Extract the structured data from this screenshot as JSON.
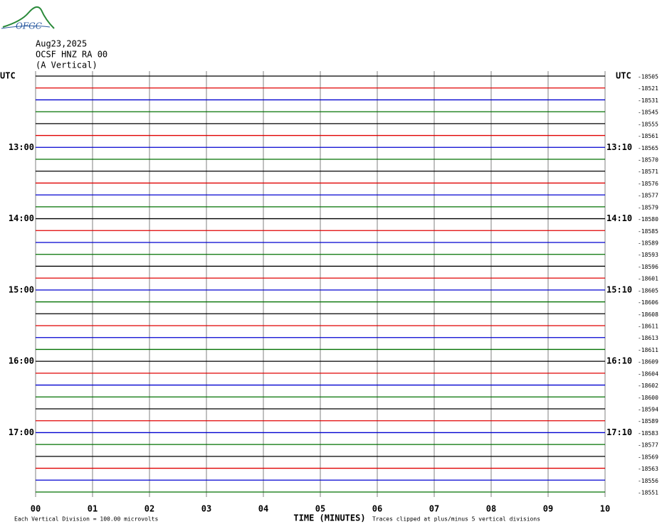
{
  "logo": "OFGC",
  "header": [
    "Aug23,2025",
    "OCSF HNZ RA 00",
    "(A Vertical)"
  ],
  "left_unit": "UTC",
  "right_unit": "UTC",
  "trace_colors": [
    "#000000",
    "#e00000",
    "#0000d0",
    "#007000"
  ],
  "left_labels": [
    null,
    null,
    null,
    null,
    null,
    null,
    "13:00",
    null,
    null,
    null,
    null,
    null,
    "14:00",
    null,
    null,
    null,
    null,
    null,
    "15:00",
    null,
    null,
    null,
    null,
    null,
    "16:00",
    null,
    null,
    null,
    null,
    null,
    "17:00",
    null,
    null,
    null,
    null,
    null
  ],
  "right_labels": [
    null,
    null,
    null,
    null,
    null,
    null,
    "13:10",
    null,
    null,
    null,
    null,
    null,
    "14:10",
    null,
    null,
    null,
    null,
    null,
    "15:10",
    null,
    null,
    null,
    null,
    null,
    "16:10",
    null,
    null,
    null,
    null,
    null,
    "17:10",
    null,
    null,
    null,
    null,
    null
  ],
  "offsets": [
    "-18505",
    "-18521",
    "-18531",
    "-18545",
    "-18555",
    "-18561",
    "-18565",
    "-18570",
    "-18571",
    "-18576",
    "-18577",
    "-18579",
    "-18580",
    "-18585",
    "-18589",
    "-18593",
    "-18596",
    "-18601",
    "-18605",
    "-18606",
    "-18608",
    "-18611",
    "-18613",
    "-18611",
    "-18609",
    "-18604",
    "-18602",
    "-18600",
    "-18594",
    "-18589",
    "-18583",
    "-18577",
    "-18569",
    "-18563",
    "-18556",
    "-18551"
  ],
  "xticks": [
    "00",
    "01",
    "02",
    "03",
    "04",
    "05",
    "06",
    "07",
    "08",
    "09",
    "10"
  ],
  "xlabel": "TIME (MINUTES)",
  "footer_left": "Each Vertical Division =  100.00 microvolts",
  "footer_right": "Traces clipped at plus/minus 5 vertical divisions"
}
